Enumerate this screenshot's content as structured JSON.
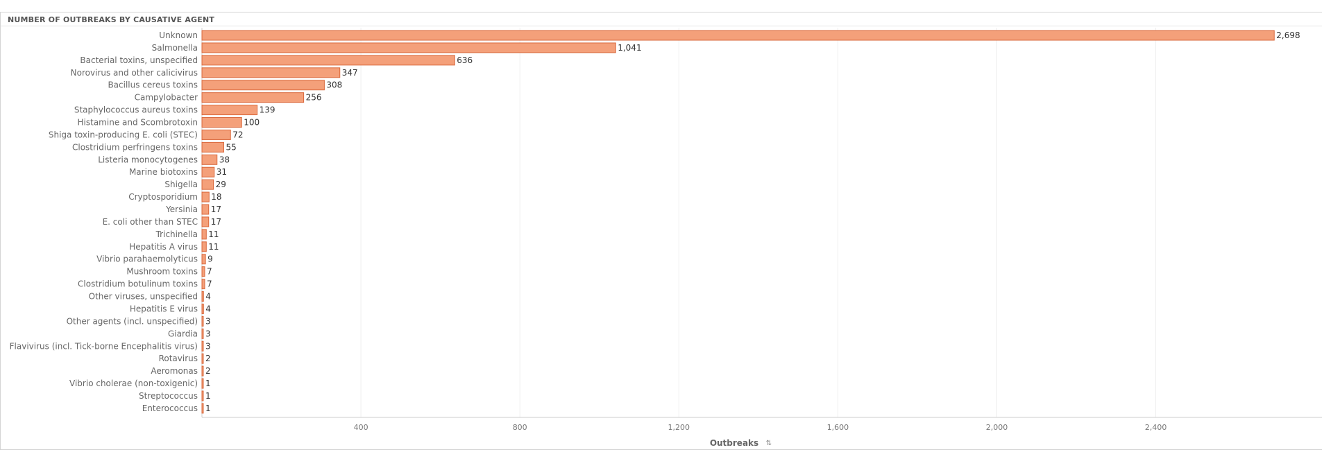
{
  "panel": {
    "title": "NUMBER OF OUTBREAKS BY CAUSATIVE AGENT"
  },
  "chart_data": {
    "type": "bar",
    "orientation": "horizontal",
    "categories": [
      "Unknown",
      "Salmonella",
      "Bacterial toxins, unspecified",
      "Norovirus and other calicivirus",
      "Bacillus cereus toxins",
      "Campylobacter",
      "Staphylococcus aureus toxins",
      "Histamine and Scombrotoxin",
      "Shiga toxin-producing E. coli (STEC)",
      "Clostridium perfringens toxins",
      "Listeria monocytogenes",
      "Marine biotoxins",
      "Shigella",
      "Cryptosporidium",
      "Yersinia",
      "E. coli other than STEC",
      "Trichinella",
      "Hepatitis A virus",
      "Vibrio parahaemolyticus",
      "Mushroom toxins",
      "Clostridium botulinum toxins",
      "Other viruses, unspecified",
      "Hepatitis E virus",
      "Other agents (incl. unspecified)",
      "Giardia",
      "Flavivirus (incl. Tick-borne Encephalitis virus)",
      "Rotavirus",
      "Aeromonas",
      "Vibrio cholerae (non-toxigenic)",
      "Streptococcus",
      "Enterococcus"
    ],
    "values": [
      2698,
      1041,
      636,
      347,
      308,
      256,
      139,
      100,
      72,
      55,
      38,
      31,
      29,
      18,
      17,
      17,
      11,
      11,
      9,
      7,
      7,
      4,
      4,
      3,
      3,
      3,
      2,
      2,
      1,
      1,
      1
    ],
    "value_labels": [
      "2,698",
      "1,041",
      "636",
      "347",
      "308",
      "256",
      "139",
      "100",
      "72",
      "55",
      "38",
      "31",
      "29",
      "18",
      "17",
      "17",
      "11",
      "11",
      "9",
      "7",
      "7",
      "4",
      "4",
      "3",
      "3",
      "3",
      "2",
      "2",
      "1",
      "1",
      "1"
    ],
    "xlim": [
      0,
      2818
    ],
    "x_ticks": [
      400,
      800,
      1200,
      1600,
      2000,
      2400
    ],
    "x_tick_labels": [
      "400",
      "800",
      "1,200",
      "1,600",
      "2,000",
      "2,400"
    ],
    "xlabel": "Outbreaks",
    "xlabel_sort_icon": "sort-icon",
    "ylabel": "",
    "grid": true,
    "legend": "none",
    "colors": {
      "bar_fill": "#f4a07a",
      "bar_stroke": "#d9683c",
      "grid": "#eeeeee",
      "axis": "#cccccc"
    }
  }
}
